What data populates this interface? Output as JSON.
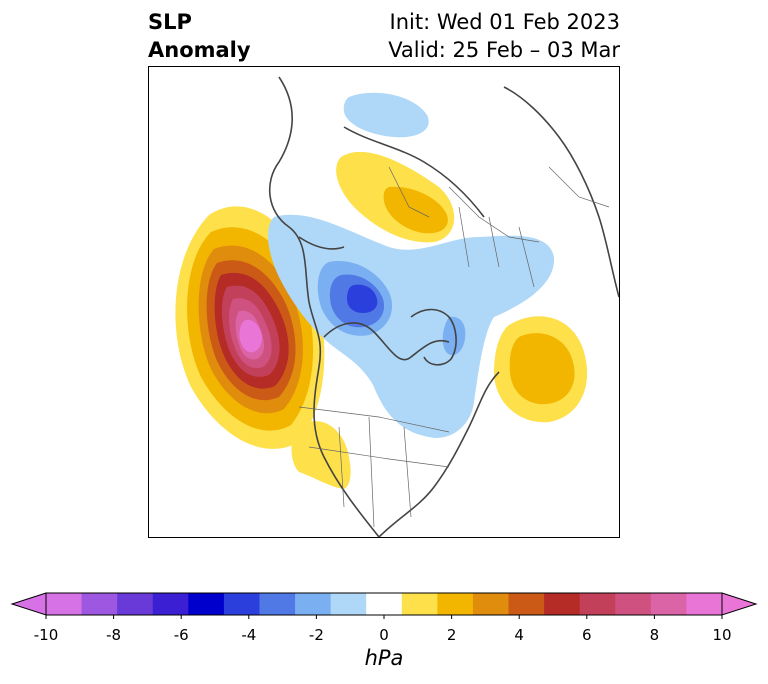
{
  "title": {
    "line1": "SLP",
    "line2": "Anomaly",
    "init": "Init: Wed 01 Feb 2023",
    "valid": "Valid: 25 Feb – 03 Mar"
  },
  "colorbar": {
    "unit_label": "hPa",
    "extend": "both",
    "ticks": [
      "-10",
      "-8",
      "-6",
      "-4",
      "-2",
      "0",
      "2",
      "4",
      "6",
      "8",
      "10"
    ],
    "levels": [
      -10,
      -9,
      -8,
      -7,
      -6,
      -5,
      -4,
      -3,
      -2,
      -1,
      1,
      2,
      3,
      4,
      5,
      6,
      7,
      8,
      9,
      10
    ],
    "colors": [
      "#d671e6",
      "#9e57e1",
      "#6a3ad9",
      "#3a1fd3",
      "#0000cc",
      "#2a3fdc",
      "#5079e5",
      "#7aaff1",
      "#afd8f8",
      "#ffffff",
      "#fde04a",
      "#f2b600",
      "#e08d0d",
      "#cc5a17",
      "#b52b26",
      "#c3405a",
      "#cf5180",
      "#da64a6",
      "#e976d7"
    ],
    "extend_min_color": "#d671e6",
    "extend_max_color": "#e976d7"
  },
  "map": {
    "projection": "polar-stereographic",
    "region": "North Pole / Northern Hemisphere"
  }
}
